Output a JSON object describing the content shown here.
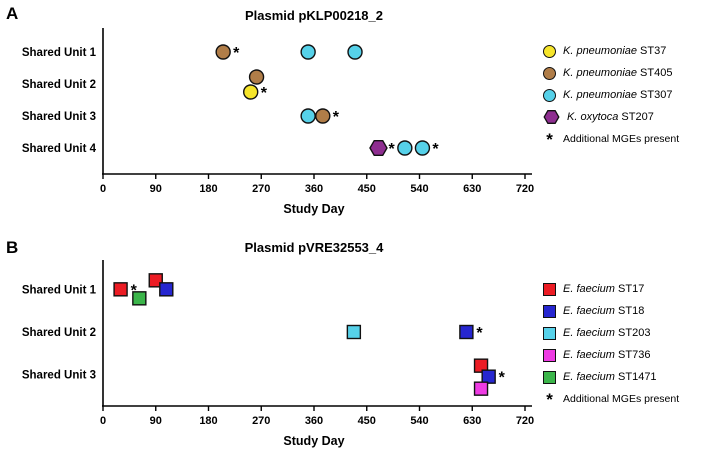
{
  "chart_data": [
    {
      "type": "scatter",
      "panel_label": "A",
      "title": "Plasmid pKLP00218_2",
      "xlabel": "Study Day",
      "xlim": [
        0,
        720
      ],
      "x_ticks": [
        0,
        90,
        180,
        270,
        360,
        450,
        540,
        630,
        720
      ],
      "categories": [
        "Shared Unit 1",
        "Shared Unit 2",
        "Shared Unit 3",
        "Shared Unit 4"
      ],
      "series": [
        {
          "label_italic": "K. pneumoniae",
          "label_rest": "ST37",
          "color": "#f6e52b",
          "shape": "circle"
        },
        {
          "label_italic": "K. pneumoniae",
          "label_rest": "ST405",
          "color": "#b07d48",
          "shape": "circle"
        },
        {
          "label_italic": "K. pneumoniae",
          "label_rest": "ST307",
          "color": "#56d1e9",
          "shape": "circle"
        },
        {
          "label_italic": "K. oxytoca",
          "label_rest": "ST207",
          "color": "#8e2e90",
          "shape": "hexagon"
        }
      ],
      "legend_note_symbol": "*",
      "legend_note": "Additional MGEs present",
      "points": [
        {
          "category": 0,
          "series": 1,
          "day": 205,
          "mge": true,
          "dy": 0
        },
        {
          "category": 0,
          "series": 2,
          "day": 350,
          "mge": false,
          "dy": 0
        },
        {
          "category": 0,
          "series": 2,
          "day": 430,
          "mge": false,
          "dy": 0
        },
        {
          "category": 1,
          "series": 1,
          "day": 262,
          "mge": false,
          "dy": -7
        },
        {
          "category": 1,
          "series": 0,
          "day": 252,
          "mge": true,
          "dy": 8
        },
        {
          "category": 2,
          "series": 2,
          "day": 350,
          "mge": false,
          "dy": 0
        },
        {
          "category": 2,
          "series": 1,
          "day": 375,
          "mge": true,
          "dy": 0
        },
        {
          "category": 3,
          "series": 3,
          "day": 470,
          "mge": true,
          "dy": 0
        },
        {
          "category": 3,
          "series": 2,
          "day": 515,
          "mge": false,
          "dy": 0
        },
        {
          "category": 3,
          "series": 2,
          "day": 545,
          "mge": true,
          "dy": 0
        }
      ]
    },
    {
      "type": "scatter",
      "panel_label": "B",
      "title": "Plasmid pVRE32553_4",
      "xlabel": "Study Day",
      "xlim": [
        0,
        720
      ],
      "x_ticks": [
        0,
        90,
        180,
        270,
        360,
        450,
        540,
        630,
        720
      ],
      "categories": [
        "Shared Unit 1",
        "Shared Unit 2",
        "Shared Unit 3"
      ],
      "series": [
        {
          "label_italic": "E. faecium",
          "label_rest": "ST17",
          "color": "#ec1c24",
          "shape": "square"
        },
        {
          "label_italic": "E. faecium",
          "label_rest": "ST18",
          "color": "#2626d0",
          "shape": "square"
        },
        {
          "label_italic": "E. faecium",
          "label_rest": "ST203",
          "color": "#56d1e9",
          "shape": "square"
        },
        {
          "label_italic": "E. faecium",
          "label_rest": "ST736",
          "color": "#ee3be3",
          "shape": "square"
        },
        {
          "label_italic": "E. faecium",
          "label_rest": "ST1471",
          "color": "#3bb54a",
          "shape": "square"
        }
      ],
      "legend_note_symbol": "*",
      "legend_note": "Additional MGEs present",
      "points": [
        {
          "category": 0,
          "series": 0,
          "day": 30,
          "mge": true,
          "dy": 0
        },
        {
          "category": 0,
          "series": 4,
          "day": 62,
          "mge": false,
          "dy": 9
        },
        {
          "category": 0,
          "series": 0,
          "day": 90,
          "mge": false,
          "dy": -9
        },
        {
          "category": 0,
          "series": 1,
          "day": 108,
          "mge": false,
          "dy": 0
        },
        {
          "category": 1,
          "series": 2,
          "day": 428,
          "mge": false,
          "dy": 0
        },
        {
          "category": 1,
          "series": 1,
          "day": 620,
          "mge": true,
          "dy": 0
        },
        {
          "category": 2,
          "series": 0,
          "day": 645,
          "mge": false,
          "dy": -9
        },
        {
          "category": 2,
          "series": 1,
          "day": 658,
          "mge": true,
          "dy": 2
        },
        {
          "category": 2,
          "series": 3,
          "day": 645,
          "mge": false,
          "dy": 14
        }
      ]
    }
  ]
}
